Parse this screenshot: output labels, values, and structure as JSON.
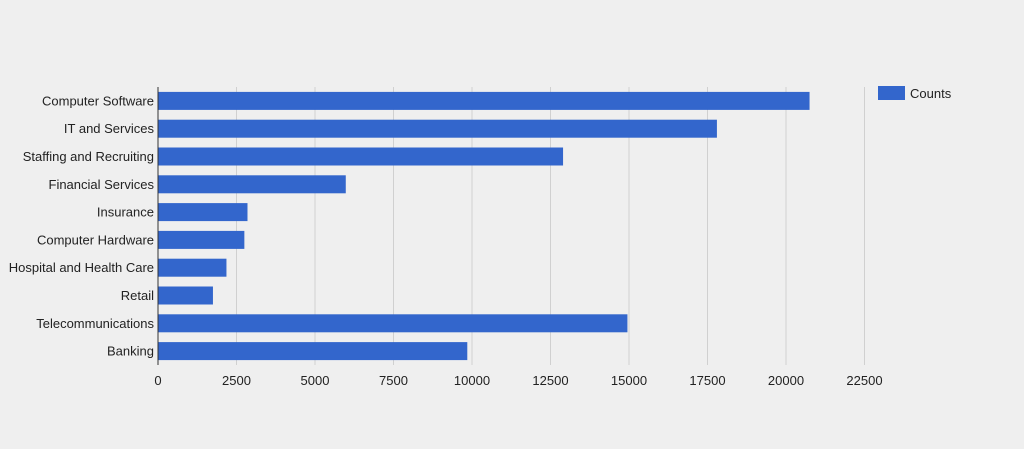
{
  "chart_data": {
    "type": "bar",
    "orientation": "horizontal",
    "categories": [
      "Computer Software",
      "IT and Services",
      "Staffing and Recruiting",
      "Financial Services",
      "Insurance",
      "Computer Hardware",
      "Hospital and Health Care",
      "Retail",
      "Telecommunications",
      "Banking"
    ],
    "series": [
      {
        "name": "Counts",
        "values": [
          20750,
          17800,
          12900,
          5980,
          2850,
          2750,
          2180,
          1750,
          14950,
          9850
        ]
      }
    ],
    "xlim": [
      0,
      22500
    ],
    "xticks": [
      "0",
      "2500",
      "5000",
      "7500",
      "10000",
      "12500",
      "15000",
      "17500",
      "20000",
      "22500"
    ],
    "grid": true,
    "legend_position": "top-right",
    "colors": {
      "bar": "#3366cc",
      "grid": "#d0d0d0",
      "axis": "#333333",
      "background": "#efefef"
    }
  }
}
